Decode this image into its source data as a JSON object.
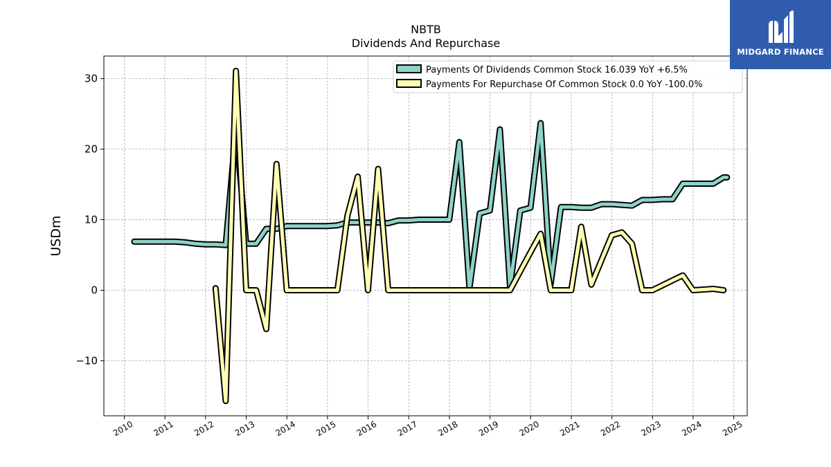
{
  "chart_data": {
    "type": "line",
    "title": "NBTB",
    "subtitle": "Dividends And Repurchase",
    "ylabel": "USDm",
    "xlabel": "",
    "ylim": [
      -17.8,
      33.2
    ],
    "xlim": [
      "2009-07-01",
      "2025-05-01"
    ],
    "grid": true,
    "legend_position": "top-right",
    "x_ticks": [
      "2010",
      "2011",
      "2012",
      "2013",
      "2014",
      "2015",
      "2016",
      "2017",
      "2018",
      "2019",
      "2020",
      "2021",
      "2022",
      "2023",
      "2024",
      "2025"
    ],
    "y_ticks": [
      {
        "value": -10,
        "label": "−10"
      },
      {
        "value": 0,
        "label": "0"
      },
      {
        "value": 10,
        "label": "10"
      },
      {
        "value": 20,
        "label": "20"
      },
      {
        "value": 30,
        "label": "30"
      }
    ],
    "series": [
      {
        "name": "Payments Of Dividends Common Stock  16.039 YoY +6.5%",
        "color": "#8dd3c7",
        "points": [
          [
            "2010-03-31",
            6.9
          ],
          [
            "2010-06-30",
            6.9
          ],
          [
            "2010-09-30",
            6.9
          ],
          [
            "2010-12-31",
            6.9
          ],
          [
            "2011-03-31",
            6.9
          ],
          [
            "2011-06-30",
            6.8
          ],
          [
            "2011-09-30",
            6.6
          ],
          [
            "2011-12-31",
            6.5
          ],
          [
            "2012-03-31",
            6.5
          ],
          [
            "2012-06-30",
            6.4
          ],
          [
            "2012-09-30",
            23.0
          ],
          [
            "2012-12-31",
            6.6
          ],
          [
            "2013-03-31",
            6.6
          ],
          [
            "2013-06-30",
            8.7
          ],
          [
            "2013-09-30",
            8.7
          ],
          [
            "2013-12-31",
            9.1
          ],
          [
            "2014-03-31",
            9.1
          ],
          [
            "2014-06-30",
            9.1
          ],
          [
            "2014-09-30",
            9.1
          ],
          [
            "2014-12-31",
            9.1
          ],
          [
            "2015-03-31",
            9.2
          ],
          [
            "2015-06-30",
            9.6
          ],
          [
            "2015-09-30",
            9.6
          ],
          [
            "2015-12-31",
            9.6
          ],
          [
            "2016-03-31",
            9.6
          ],
          [
            "2016-06-30",
            9.5
          ],
          [
            "2016-09-30",
            9.9
          ],
          [
            "2016-12-31",
            9.9
          ],
          [
            "2017-03-31",
            10.0
          ],
          [
            "2017-06-30",
            10.0
          ],
          [
            "2017-09-30",
            10.0
          ],
          [
            "2017-12-31",
            10.0
          ],
          [
            "2018-03-31",
            21.0
          ],
          [
            "2018-06-30",
            0.3
          ],
          [
            "2018-09-30",
            10.9
          ],
          [
            "2018-12-31",
            11.3
          ],
          [
            "2019-03-31",
            22.8
          ],
          [
            "2019-06-30",
            0.5
          ],
          [
            "2019-09-30",
            11.3
          ],
          [
            "2019-12-31",
            11.7
          ],
          [
            "2020-03-31",
            23.7
          ],
          [
            "2020-06-30",
            0.9
          ],
          [
            "2020-09-30",
            11.8
          ],
          [
            "2020-12-31",
            11.8
          ],
          [
            "2021-03-31",
            11.7
          ],
          [
            "2021-06-30",
            11.7
          ],
          [
            "2021-09-30",
            12.2
          ],
          [
            "2021-12-31",
            12.2
          ],
          [
            "2022-03-31",
            12.1
          ],
          [
            "2022-06-30",
            12.0
          ],
          [
            "2022-09-30",
            12.8
          ],
          [
            "2022-12-31",
            12.8
          ],
          [
            "2023-03-31",
            12.9
          ],
          [
            "2023-06-30",
            12.9
          ],
          [
            "2023-09-30",
            15.1
          ],
          [
            "2023-12-31",
            15.1
          ],
          [
            "2024-03-31",
            15.1
          ],
          [
            "2024-06-30",
            15.1
          ],
          [
            "2024-09-30",
            16.0
          ],
          [
            "2024-10-31",
            16.0
          ]
        ]
      },
      {
        "name": "Payments For Repurchase Of Common Stock  0.0 YoY -100.0%",
        "color": "#ffffb3",
        "points": [
          [
            "2012-03-31",
            0.3
          ],
          [
            "2012-06-30",
            -15.7
          ],
          [
            "2012-09-30",
            31.1
          ],
          [
            "2012-12-31",
            0.0
          ],
          [
            "2013-03-31",
            0.0
          ],
          [
            "2013-06-30",
            -5.5
          ],
          [
            "2013-09-30",
            17.9
          ],
          [
            "2013-12-31",
            0.0
          ],
          [
            "2014-03-31",
            0.0
          ],
          [
            "2014-06-30",
            0.0
          ],
          [
            "2014-09-30",
            0.0
          ],
          [
            "2014-12-31",
            0.0
          ],
          [
            "2015-03-31",
            0.0
          ],
          [
            "2015-06-30",
            10.6
          ],
          [
            "2015-09-30",
            16.1
          ],
          [
            "2015-12-31",
            0.0
          ],
          [
            "2016-03-31",
            17.2
          ],
          [
            "2016-06-30",
            0.0
          ],
          [
            "2016-09-30",
            0.0
          ],
          [
            "2016-12-31",
            0.0
          ],
          [
            "2017-03-31",
            0.0
          ],
          [
            "2017-06-30",
            0.0
          ],
          [
            "2017-09-30",
            0.0
          ],
          [
            "2017-12-31",
            0.0
          ],
          [
            "2018-03-31",
            0.0
          ],
          [
            "2018-06-30",
            0.0
          ],
          [
            "2018-09-30",
            0.0
          ],
          [
            "2018-12-31",
            0.0
          ],
          [
            "2019-03-31",
            0.0
          ],
          [
            "2019-06-30",
            0.0
          ],
          [
            "2019-09-30",
            2.7
          ],
          [
            "2019-12-31",
            5.4
          ],
          [
            "2020-03-31",
            8.0
          ],
          [
            "2020-06-30",
            0.0
          ],
          [
            "2020-09-30",
            0.0
          ],
          [
            "2020-12-31",
            0.0
          ],
          [
            "2021-03-31",
            9.0
          ],
          [
            "2021-06-30",
            0.8
          ],
          [
            "2021-09-30",
            4.3
          ],
          [
            "2021-12-31",
            7.8
          ],
          [
            "2022-03-31",
            8.2
          ],
          [
            "2022-06-30",
            6.6
          ],
          [
            "2022-09-30",
            0.0
          ],
          [
            "2022-12-31",
            0.0
          ],
          [
            "2023-03-31",
            0.7
          ],
          [
            "2023-06-30",
            1.4
          ],
          [
            "2023-09-30",
            2.1
          ],
          [
            "2023-12-31",
            0.0
          ],
          [
            "2024-03-31",
            0.1
          ],
          [
            "2024-06-30",
            0.2
          ],
          [
            "2024-09-30",
            0.0
          ]
        ]
      }
    ]
  },
  "logo": {
    "text": "MIDGARD FINANCE"
  }
}
